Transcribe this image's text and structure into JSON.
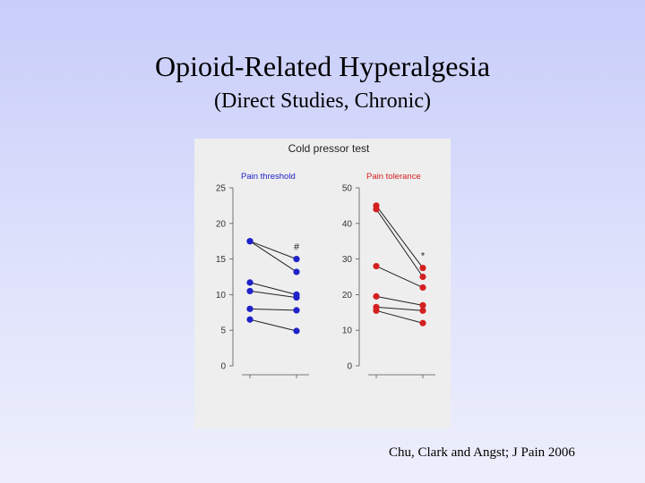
{
  "slide": {
    "title": "Opioid-Related Hyperalgesia",
    "subtitle": "(Direct Studies, Chronic)",
    "citation": "Chu, Clark and Angst; J Pain 2006"
  },
  "colors": {
    "threshold": "#1f22c8",
    "tolerance": "#d42020",
    "panel_bg": "#eeeeee"
  },
  "chart_data": {
    "type": "scatter",
    "title": "Cold pressor test",
    "panels": [
      {
        "name": "Pain threshold",
        "ylim": [
          0,
          25
        ],
        "yticks": [
          0,
          5,
          10,
          15,
          20,
          25
        ],
        "marker": "#",
        "subjects": [
          [
            17.5,
            15.0
          ],
          [
            17.5,
            13.2
          ],
          [
            11.7,
            10.0
          ],
          [
            10.5,
            9.6
          ],
          [
            8.0,
            7.8
          ],
          [
            6.5,
            4.9
          ]
        ]
      },
      {
        "name": "Pain tolerance",
        "ylim": [
          0,
          50
        ],
        "yticks": [
          0,
          10,
          20,
          30,
          40,
          50
        ],
        "marker": "*",
        "subjects": [
          [
            45.0,
            27.5
          ],
          [
            44.0,
            25.0
          ],
          [
            28.0,
            22.0
          ],
          [
            19.5,
            17.0
          ],
          [
            16.5,
            15.5
          ],
          [
            15.5,
            12.0
          ]
        ]
      }
    ]
  }
}
